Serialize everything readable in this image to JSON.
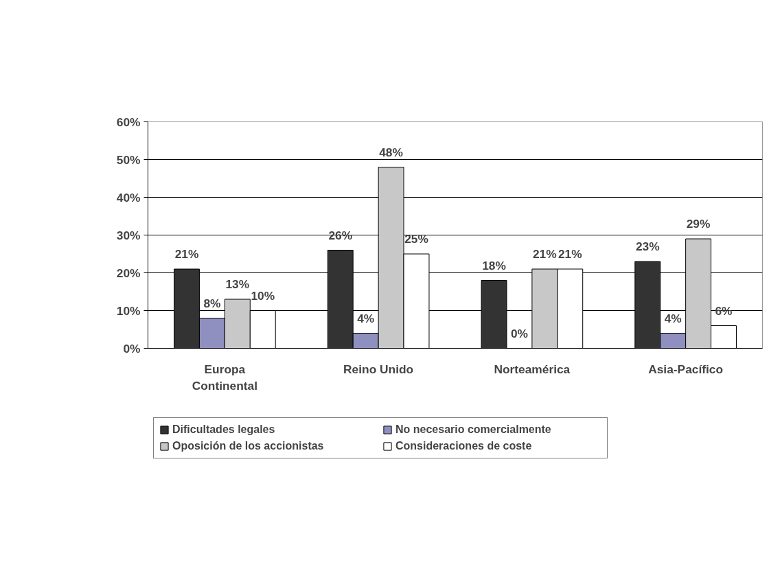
{
  "chart_data": {
    "type": "bar",
    "categories": [
      "Europa Continental",
      "Reino Unido",
      "Norteamérica",
      "Asia-Pacífico"
    ],
    "series": [
      {
        "name": "Dificultades legales",
        "color": "#333333",
        "values": [
          21,
          26,
          18,
          23
        ],
        "value_labels": [
          "21%",
          "26%",
          "18%",
          "23%"
        ]
      },
      {
        "name": "No necesario comercialmente",
        "color": "#8f8fc0",
        "values": [
          8,
          4,
          0,
          4
        ],
        "value_labels": [
          "8%",
          "4%",
          "0%",
          "4%"
        ]
      },
      {
        "name": "Oposición de los accionistas",
        "color": "#c8c8c8",
        "values": [
          13,
          48,
          21,
          29
        ],
        "value_labels": [
          "13%",
          "48%",
          "21%",
          "29%"
        ]
      },
      {
        "name": "Consideraciones de coste",
        "color": "#ffffff",
        "values": [
          10,
          25,
          21,
          6
        ],
        "value_labels": [
          "10%",
          "25%",
          "21%",
          "6%"
        ]
      }
    ],
    "ylim": [
      0,
      60
    ],
    "yticks": [
      {
        "value": 0,
        "label": "0%"
      },
      {
        "value": 10,
        "label": "10%"
      },
      {
        "value": 20,
        "label": "20%"
      },
      {
        "value": 30,
        "label": "30%"
      },
      {
        "value": 40,
        "label": "40%"
      },
      {
        "value": 50,
        "label": "50%"
      },
      {
        "value": 60,
        "label": "60%"
      }
    ],
    "grid": "y",
    "legend": "bottom"
  }
}
